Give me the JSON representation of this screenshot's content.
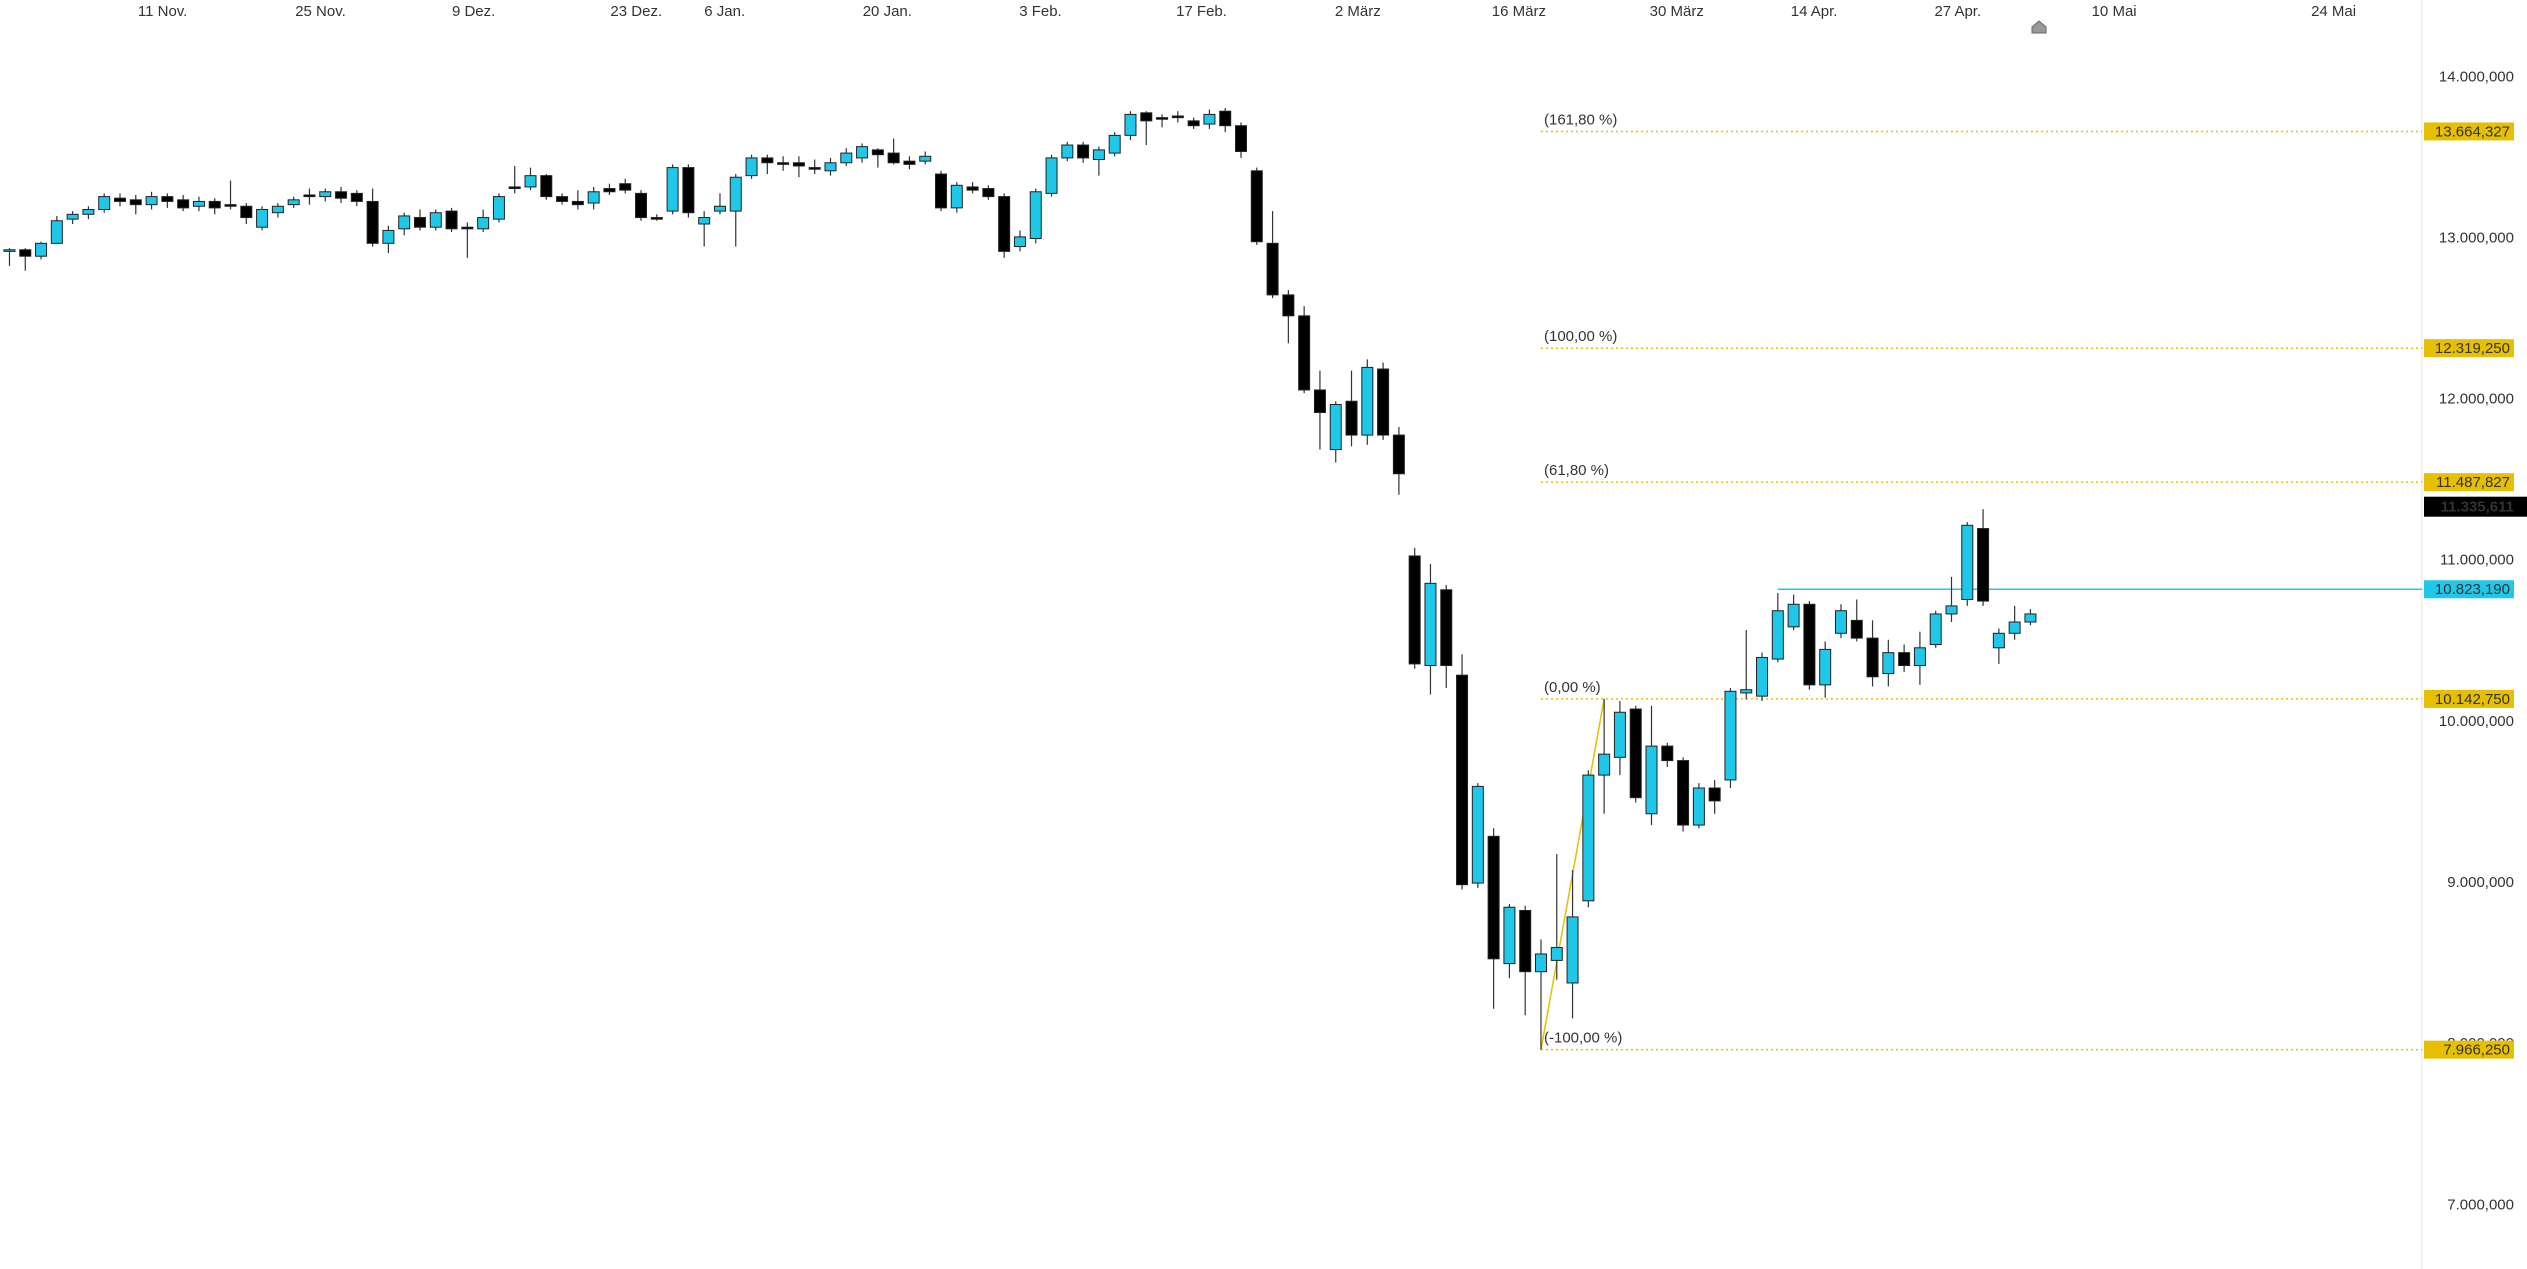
{
  "chart_data": {
    "type": "candlestick",
    "up_color": "#1fc8e8",
    "down_color": "#000000",
    "grid": false,
    "xlim": [
      -0.6,
      152.8
    ],
    "ylim": [
      6605,
      14480
    ],
    "xticks": [
      {
        "value": 9.7,
        "label": "11 Nov."
      },
      {
        "value": 19.7,
        "label": "25 Nov."
      },
      {
        "value": 29.4,
        "label": "9 Dez."
      },
      {
        "value": 39.7,
        "label": "23 Dez."
      },
      {
        "value": 45.3,
        "label": "6 Jan."
      },
      {
        "value": 55.6,
        "label": "20 Jan."
      },
      {
        "value": 65.3,
        "label": "3 Feb."
      },
      {
        "value": 75.5,
        "label": "17 Feb."
      },
      {
        "value": 85.4,
        "label": "2 März"
      },
      {
        "value": 95.6,
        "label": "16 März"
      },
      {
        "value": 105.6,
        "label": "30 März"
      },
      {
        "value": 114.3,
        "label": "14 Apr."
      },
      {
        "value": 123.4,
        "label": "27 Apr."
      },
      {
        "value": 133.3,
        "label": "10 Mai"
      },
      {
        "value": 147.2,
        "label": "24 Mai"
      }
    ],
    "yticks": [
      {
        "value": 14000,
        "label": "14.000,000"
      },
      {
        "value": 13000,
        "label": "13.000,000"
      },
      {
        "value": 12000,
        "label": "12.000,000"
      },
      {
        "value": 11000,
        "label": "11.000,000"
      },
      {
        "value": 10000,
        "label": "10.000,000"
      },
      {
        "value": 9000,
        "label": "9.000,000"
      },
      {
        "value": 8000,
        "label": "8.000,000"
      },
      {
        "value": 7000,
        "label": "7.000,000"
      }
    ],
    "open": [
      12920,
      12930,
      12890,
      12970,
      13120,
      13150,
      13180,
      13250,
      13240,
      13210,
      13260,
      13240,
      13200,
      13230,
      13210,
      13200,
      13070,
      13160,
      13210,
      13270,
      13260,
      13290,
      13280,
      13230,
      12970,
      13060,
      13130,
      13070,
      13170,
      13070,
      13060,
      13120,
      13320,
      13320,
      13390,
      13260,
      13230,
      13220,
      13310,
      13340,
      13280,
      13130,
      13170,
      13440,
      13090,
      13170,
      13170,
      13390,
      13500,
      13470,
      13470,
      13440,
      13420,
      13470,
      13500,
      13550,
      13530,
      13480,
      13480,
      13400,
      13190,
      13320,
      13310,
      13260,
      12950,
      13000,
      13280,
      13500,
      13580,
      13490,
      13530,
      13640,
      13780,
      13750,
      13760,
      13730,
      13710,
      13790,
      13700,
      13420,
      12970,
      12650,
      12520,
      12060,
      11690,
      11990,
      11780,
      12190,
      11780,
      11030,
      10350,
      10820,
      10290,
      9000,
      9290,
      8500,
      8830,
      8450,
      8520,
      8380,
      8890,
      9670,
      9780,
      10080,
      9430,
      9850,
      9760,
      9360,
      9590,
      9640,
      10180,
      10160,
      10390,
      10590,
      10730,
      10230,
      10550,
      10630,
      10520,
      10300,
      10430,
      10350,
      10480,
      10670,
      10760,
      11200,
      10460,
      10550,
      10620
    ],
    "high": [
      12940,
      12940,
      12980,
      13140,
      13170,
      13200,
      13280,
      13280,
      13270,
      13290,
      13280,
      13270,
      13260,
      13250,
      13360,
      13220,
      13200,
      13220,
      13260,
      13310,
      13310,
      13320,
      13300,
      13310,
      13080,
      13160,
      13180,
      13180,
      13190,
      13100,
      13180,
      13280,
      13450,
      13440,
      13400,
      13280,
      13300,
      13320,
      13340,
      13370,
      13300,
      13150,
      13460,
      13460,
      13170,
      13280,
      13400,
      13520,
      13520,
      13510,
      13510,
      13490,
      13500,
      13560,
      13590,
      13560,
      13620,
      13510,
      13540,
      13420,
      13350,
      13350,
      13330,
      13280,
      13050,
      13310,
      13520,
      13600,
      13600,
      13570,
      13660,
      13790,
      13790,
      13770,
      13790,
      13750,
      13800,
      13810,
      13720,
      13440,
      13170,
      12680,
      12580,
      12180,
      11990,
      12180,
      12250,
      12230,
      11830,
      11080,
      10980,
      10850,
      10420,
      9620,
      9340,
      8870,
      8860,
      8650,
      9180,
      9080,
      9700,
      10142.75,
      10130,
      10100,
      10100,
      9870,
      9780,
      9620,
      9640,
      10210,
      10570,
      10430,
      10800,
      10790,
      10750,
      10500,
      10730,
      10760,
      10630,
      10510,
      10480,
      10560,
      10690,
      10900,
      11240,
      11320,
      10580,
      10720,
      10700
    ],
    "low": [
      12830,
      12800,
      12870,
      12970,
      13090,
      13120,
      13160,
      13200,
      13150,
      13180,
      13190,
      13170,
      13170,
      13150,
      13180,
      13090,
      13050,
      13130,
      13190,
      13210,
      13230,
      13220,
      13200,
      12950,
      12910,
      13020,
      13050,
      13050,
      13040,
      12880,
      13040,
      13100,
      13280,
      13300,
      13240,
      13210,
      13180,
      13180,
      13270,
      13280,
      13110,
      13110,
      13150,
      13130,
      12950,
      13150,
      12950,
      13370,
      13400,
      13420,
      13380,
      13400,
      13390,
      13450,
      13470,
      13440,
      13460,
      13430,
      13460,
      13170,
      13160,
      13280,
      13240,
      12880,
      12920,
      12970,
      13260,
      13480,
      13470,
      13390,
      13510,
      13610,
      13580,
      13690,
      13720,
      13680,
      13680,
      13660,
      13500,
      12960,
      12630,
      12350,
      12040,
      11690,
      11610,
      11710,
      11720,
      11750,
      11410,
      10330,
      10170,
      10210,
      8960,
      8970,
      8220,
      8410,
      8180,
      7966.25,
      8400,
      8160,
      8850,
      9430,
      9670,
      9500,
      9360,
      9720,
      9320,
      9340,
      9430,
      9590,
      10140,
      10130,
      10370,
      10570,
      10200,
      10150,
      10520,
      10500,
      10220,
      10220,
      10310,
      10230,
      10460,
      10620,
      10720,
      10720,
      10360,
      10510,
      10600
    ],
    "close": [
      12930,
      12890,
      12970,
      13110,
      13150,
      13180,
      13260,
      13230,
      13210,
      13260,
      13230,
      13190,
      13230,
      13190,
      13200,
      13130,
      13180,
      13200,
      13240,
      13260,
      13290,
      13250,
      13230,
      12970,
      13050,
      13140,
      13070,
      13160,
      13060,
      13060,
      13130,
      13260,
      13310,
      13390,
      13260,
      13230,
      13210,
      13290,
      13290,
      13300,
      13130,
      13120,
      13440,
      13160,
      13130,
      13200,
      13380,
      13500,
      13470,
      13460,
      13450,
      13430,
      13470,
      13530,
      13570,
      13520,
      13470,
      13460,
      13510,
      13190,
      13330,
      13300,
      13260,
      12920,
      13010,
      13290,
      13500,
      13580,
      13500,
      13550,
      13640,
      13770,
      13730,
      13740,
      13750,
      13700,
      13770,
      13700,
      13540,
      12980,
      12650,
      12520,
      12060,
      11920,
      11970,
      11780,
      12200,
      11780,
      11540,
      10360,
      10860,
      10350,
      8990,
      9600,
      8530,
      8850,
      8450,
      8560,
      8600,
      8790,
      9670,
      9800,
      10060,
      9530,
      9850,
      9760,
      9360,
      9590,
      9510,
      10190,
      10200,
      10400,
      10690,
      10730,
      10230,
      10450,
      10690,
      10520,
      10280,
      10430,
      10350,
      10460,
      10670,
      10720,
      11220,
      10750,
      10550,
      10620,
      10670
    ],
    "fibonacci": {
      "color": "#e6c000",
      "from": {
        "index": 97,
        "value": 7966.25
      },
      "to": {
        "index": 101,
        "value": 10142.75
      },
      "levels": [
        {
          "label": "(161,80 %)",
          "value": 13664.327,
          "value_label": "13.664,327"
        },
        {
          "label": "(100,00 %)",
          "value": 12319.25,
          "value_label": "12.319,250"
        },
        {
          "label": "(61,80 %)",
          "value": 11487.827,
          "value_label": "11.487,827"
        },
        {
          "label": "(0,00 %)",
          "value": 10142.75,
          "value_label": "10.142,750"
        },
        {
          "label": "(-100,00 %)",
          "value": 7966.25,
          "value_label": "7.966,250"
        }
      ]
    },
    "hline": {
      "value": 10823.19,
      "label": "10.823,190",
      "from_index": 112,
      "color": "#1fc8e8"
    },
    "last_price": {
      "value": 11335.611,
      "label": "11.335,611"
    }
  }
}
